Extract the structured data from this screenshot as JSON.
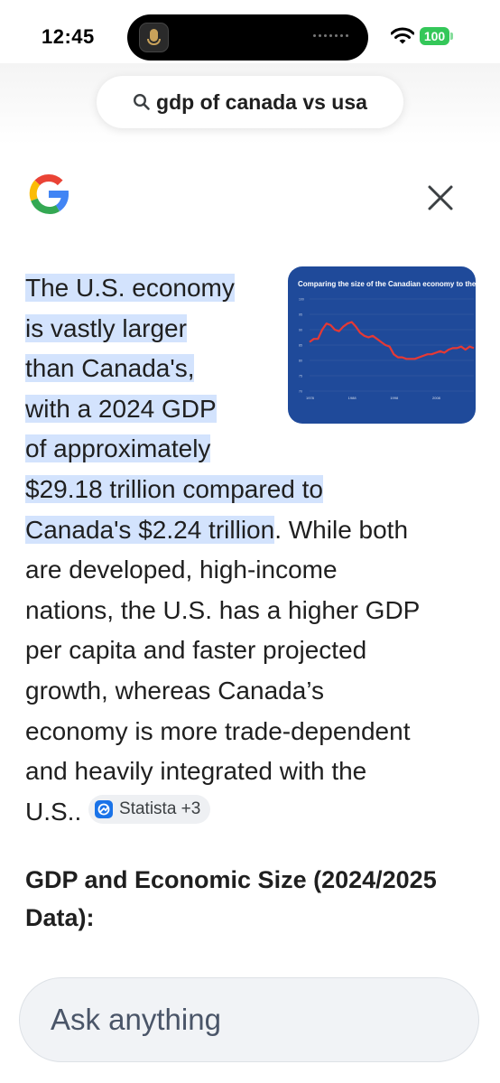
{
  "status_bar": {
    "time": "12:45",
    "battery": "100"
  },
  "search": {
    "query": "gdp of canada vs usa",
    "icon": "search-icon"
  },
  "header": {
    "logo_icon": "google-g-icon",
    "close_icon": "close-icon"
  },
  "answer": {
    "lines": [
      {
        "text": "The U.S. economy",
        "highlight": true
      },
      {
        "text": "is vastly larger",
        "highlight": true
      },
      {
        "text": "than Canada's,",
        "highlight": true
      },
      {
        "text": "with a 2024 GDP",
        "highlight": true
      },
      {
        "text": "of approximately",
        "highlight": true
      },
      {
        "text": "$29.18 trillion compared to",
        "highlight": true
      }
    ],
    "line7_highlight": "Canada's $2.24 trillion",
    "line7_rest": ". While both",
    "plain_lines": [
      "are developed, high-income",
      "nations, the U.S. has a higher GDP",
      "per capita and faster projected",
      "growth, whereas Canada’s",
      "economy is more trade-dependent",
      "and heavily integrated with the"
    ],
    "last_line": "U.S..",
    "source_chip": {
      "label": "Statista +3",
      "icon": "statista-icon"
    }
  },
  "image_card": {
    "title": "Comparing the size of the Canadian economy to the U",
    "colors": {
      "background": "#1f4a9a",
      "line": "#e53935"
    }
  },
  "chart_data": {
    "type": "line",
    "title": "Comparing the size of the Canadian economy to the U",
    "x_ticks": [
      "1978",
      "1988",
      "1998",
      "2008"
    ],
    "y_ticks": [
      "100",
      "95",
      "90",
      "85",
      "80",
      "75",
      "70"
    ],
    "ylim": [
      70,
      100
    ],
    "xlim": [
      1978,
      2017
    ],
    "series": [
      {
        "x": [
          1978,
          1979,
          1980,
          1981,
          1982,
          1983,
          1984,
          1985,
          1986,
          1987,
          1988,
          1989,
          1990,
          1991,
          1992,
          1993,
          1994,
          1995,
          1996,
          1997,
          1998,
          1999,
          2000,
          2001,
          2002,
          2003,
          2004,
          2005,
          2006,
          2007,
          2008,
          2009,
          2010,
          2011,
          2012,
          2013,
          2014,
          2015,
          2016,
          2017
        ],
        "y": [
          86,
          87,
          87,
          90,
          92,
          91.5,
          90,
          89.5,
          91,
          92,
          92.5,
          91,
          89,
          88,
          87.5,
          88,
          87,
          86,
          85,
          84.5,
          82,
          81,
          81,
          80.5,
          80.5,
          80.5,
          81,
          81.5,
          82,
          82,
          82.5,
          83,
          82.5,
          83.5,
          84,
          84,
          84.5,
          83.5,
          84.5,
          84
        ]
      }
    ],
    "grid": true
  },
  "section": {
    "heading": "GDP and Economic Size (2024/2025 Data):"
  },
  "ask": {
    "placeholder": "Ask anything"
  }
}
